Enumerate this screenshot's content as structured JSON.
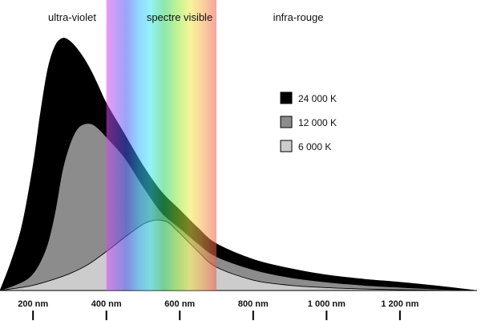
{
  "chart_data": {
    "type": "area",
    "title": "",
    "xlabel": "",
    "ylabel": "",
    "x_unit": "nm",
    "xlim": [
      110,
      1410
    ],
    "x_ticks": [
      200,
      400,
      600,
      800,
      1000,
      1200
    ],
    "x_tick_labels": [
      "200 nm",
      "400 nm",
      "600 nm",
      "800 nm",
      "1 000 nm",
      "1 200 nm"
    ],
    "y_axis_visible": false,
    "grid": false,
    "legend_position": "right",
    "regions": [
      {
        "name": "ultra-violet",
        "x_range": [
          110,
          400
        ]
      },
      {
        "name": "spectre visible",
        "x_range": [
          400,
          700
        ]
      },
      {
        "name": "infra-rouge",
        "x_range": [
          700,
          1410
        ]
      }
    ],
    "visible_band": [
      400,
      700
    ],
    "series": [
      {
        "name": "24 000 K",
        "color": "#000000",
        "x": [
          110,
          140,
          170,
          200,
          220,
          240,
          260,
          280,
          300,
          320,
          340,
          360,
          380,
          400,
          450,
          500,
          550,
          600,
          650,
          700,
          800,
          900,
          1000,
          1100,
          1200,
          1300,
          1410
        ],
        "y": [
          0,
          11,
          25,
          48,
          68,
          85,
          94,
          97,
          96,
          93,
          89,
          84,
          78,
          72,
          60,
          48,
          38,
          31,
          24,
          18,
          12,
          8.5,
          6,
          4.4,
          3.2,
          1.8,
          0
        ]
      },
      {
        "name": "12 000 K",
        "color": "#8c8c8c",
        "x": [
          110,
          150,
          180,
          200,
          220,
          240,
          260,
          280,
          300,
          320,
          340,
          360,
          380,
          400,
          450,
          500,
          550,
          600,
          650,
          700,
          800,
          900,
          1000,
          1100,
          1200,
          1300,
          1410
        ],
        "y": [
          0,
          2,
          4,
          6.5,
          11,
          18,
          30,
          46,
          56,
          62,
          64,
          64,
          62,
          59,
          51,
          40,
          30,
          24,
          18,
          13,
          8,
          5,
          3.2,
          2,
          1.2,
          0.5,
          0
        ]
      },
      {
        "name": "6 000 K",
        "color": "#cccccc",
        "x": [
          110,
          150,
          200,
          250,
          300,
          350,
          400,
          450,
          500,
          530,
          550,
          570,
          600,
          650,
          700,
          800,
          900,
          1000,
          1100,
          1200,
          1300,
          1410
        ],
        "y": [
          0,
          0.8,
          2,
          4,
          6.5,
          10,
          15,
          20.5,
          25.5,
          27,
          27,
          26,
          22,
          15,
          9,
          4,
          2,
          1.1,
          0.6,
          0.3,
          0.1,
          0
        ]
      }
    ],
    "region_labels": [
      "ultra-violet",
      "spectre visible",
      "infra-rouge"
    ]
  }
}
